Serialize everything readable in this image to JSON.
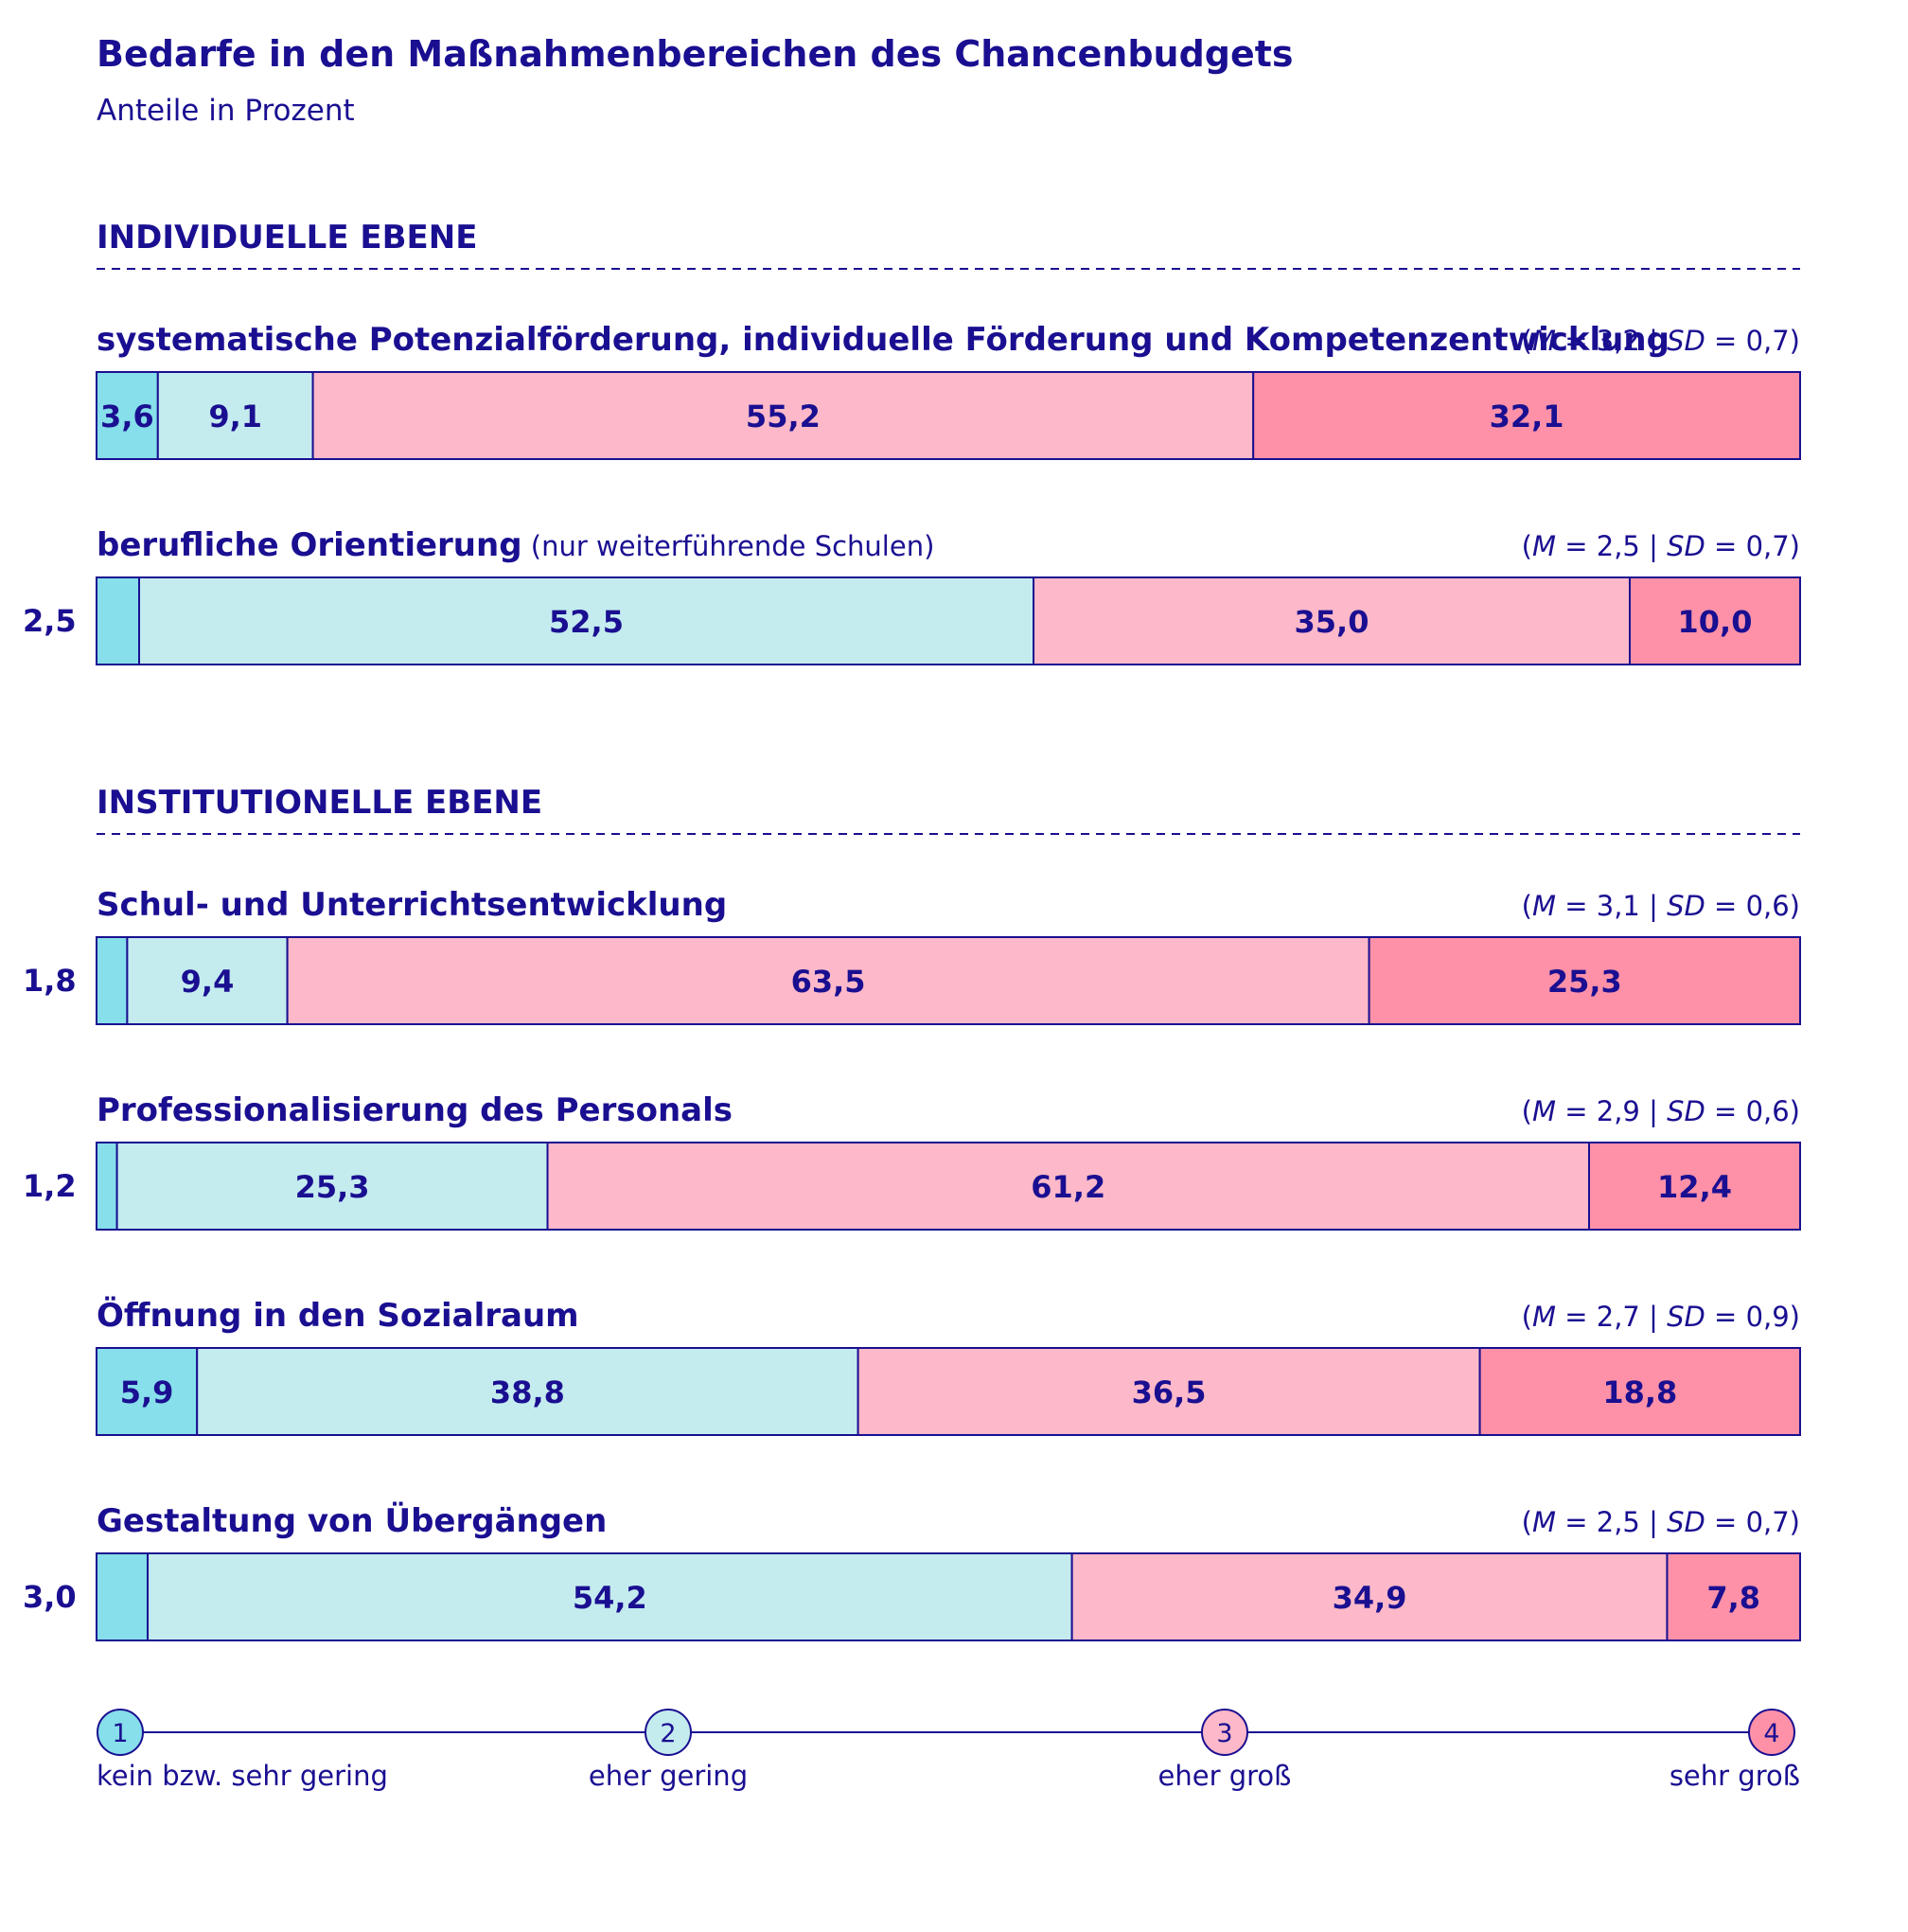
{
  "chart_data": {
    "type": "bar",
    "stacked": true,
    "orientation": "horizontal",
    "title": "Bedarfe in den Maßnahmenbereichen des Chancenbudgets",
    "subtitle": "Anteile in Prozent",
    "sections": [
      {
        "heading": "INDIVIDUELLE EBENE",
        "rows": [
          {
            "label": "systematische Potenzialförderung, individuelle Förderung und Kompetenzentwicklung",
            "note": "",
            "stat": {
              "m_label": "M",
              "m": "3,2",
              "sd_label": "SD",
              "sd": "0,7"
            },
            "side_value": "",
            "values": [
              3.6,
              9.1,
              55.2,
              32.1
            ],
            "labels": [
              "3,6",
              "9,1",
              "55,2",
              "32,1"
            ]
          },
          {
            "label": "berufliche Orientierung",
            "note": "(nur weiterführende Schulen)",
            "stat": {
              "m_label": "M",
              "m": "2,5",
              "sd_label": "SD",
              "sd": "0,7"
            },
            "side_value": "2,5",
            "values": [
              2.5,
              52.5,
              35.0,
              10.0
            ],
            "labels": [
              "",
              "52,5",
              "35,0",
              "10,0"
            ]
          }
        ]
      },
      {
        "heading": "INSTITUTIONELLE EBENE",
        "rows": [
          {
            "label": "Schul- und Unterrichtsentwicklung",
            "note": "",
            "stat": {
              "m_label": "M",
              "m": "3,1",
              "sd_label": "SD",
              "sd": "0,6"
            },
            "side_value": "1,8",
            "values": [
              1.8,
              9.4,
              63.5,
              25.3
            ],
            "labels": [
              "",
              "9,4",
              "63,5",
              "25,3"
            ]
          },
          {
            "label": "Professionalisierung des Personals",
            "note": "",
            "stat": {
              "m_label": "M",
              "m": "2,9",
              "sd_label": "SD",
              "sd": "0,6"
            },
            "side_value": "1,2",
            "values": [
              1.2,
              25.3,
              61.2,
              12.4
            ],
            "labels": [
              "",
              "25,3",
              "61,2",
              "12,4"
            ]
          },
          {
            "label": "Öffnung in den Sozialraum",
            "note": "",
            "stat": {
              "m_label": "M",
              "m": "2,7",
              "sd_label": "SD",
              "sd": "0,9"
            },
            "side_value": "",
            "values": [
              5.9,
              38.8,
              36.5,
              18.8
            ],
            "labels": [
              "5,9",
              "38,8",
              "36,5",
              "18,8"
            ]
          },
          {
            "label": "Gestaltung von Übergängen",
            "note": "",
            "stat": {
              "m_label": "M",
              "m": "2,5",
              "sd_label": "SD",
              "sd": "0,7"
            },
            "side_value": "3,0",
            "values": [
              3.0,
              54.2,
              34.9,
              7.8
            ],
            "labels": [
              "",
              "54,2",
              "34,9",
              "7,8"
            ]
          }
        ]
      }
    ],
    "scale": [
      {
        "num": "1",
        "label": "kein bzw. sehr gering",
        "color": "#86dfea"
      },
      {
        "num": "2",
        "label": "eher gering",
        "color": "#c4ecef"
      },
      {
        "num": "3",
        "label": "eher groß",
        "color": "#fdb9c9"
      },
      {
        "num": "4",
        "label": "sehr groß",
        "color": "#fe91a8"
      }
    ],
    "colors": {
      "text": "#1a0f91",
      "outline": "#1a0f91",
      "segments": [
        "#86dfea",
        "#c4ecef",
        "#fdb9c9",
        "#fe91a8"
      ]
    }
  }
}
